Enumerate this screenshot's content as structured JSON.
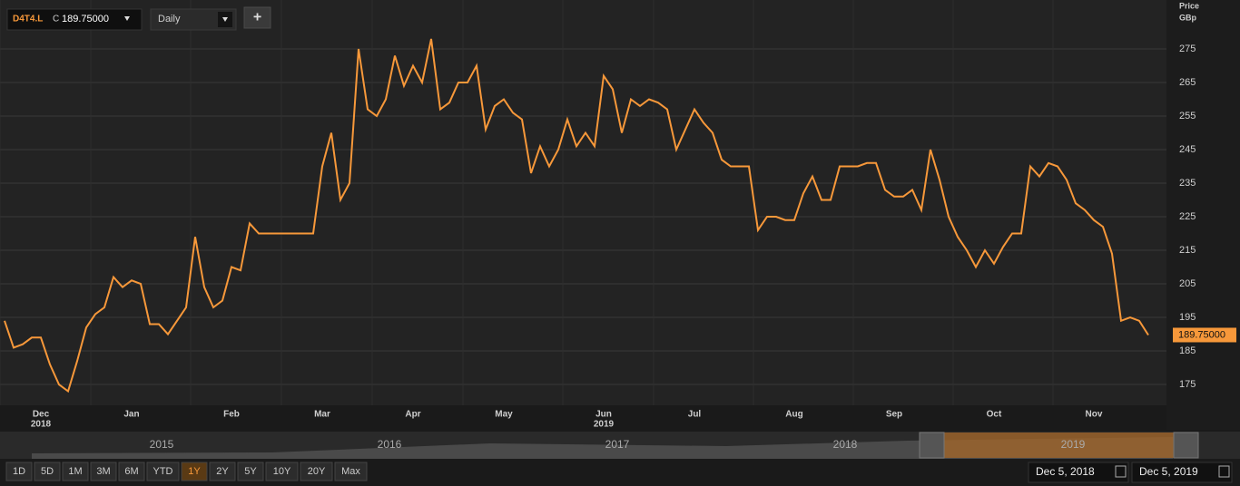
{
  "toolbar": {
    "symbol": "D4T4.L",
    "close_prefix": "C",
    "close": "189.75000",
    "interval": "Daily",
    "add": "+"
  },
  "chart_data": {
    "type": "line",
    "y_axis_title": "Price",
    "y_axis_unit": "GBp",
    "color": "#f7983a",
    "grid": true,
    "categories": [
      null,
      null,
      null,
      null,
      "Dec",
      null,
      null,
      null,
      null,
      null,
      null,
      null,
      null,
      null,
      "Jan",
      null,
      null,
      null,
      null,
      null,
      null,
      null,
      null,
      null,
      null,
      "Feb",
      null,
      null,
      null,
      null,
      null,
      null,
      null,
      null,
      null,
      "Mar",
      null,
      null,
      null,
      null,
      null,
      null,
      null,
      null,
      null,
      "Apr",
      null,
      null,
      null,
      null,
      null,
      null,
      null,
      null,
      null,
      "May",
      null,
      null,
      null,
      null,
      null,
      null,
      null,
      null,
      null,
      null,
      "Jun",
      null,
      null,
      null,
      null,
      null,
      null,
      null,
      null,
      null,
      "Jul",
      null,
      null,
      null,
      null,
      null,
      null,
      null,
      null,
      null,
      null,
      "Aug",
      null,
      null,
      null,
      null,
      null,
      null,
      null,
      null,
      null,
      null,
      "Sep",
      null,
      null,
      null,
      null,
      null,
      null,
      null,
      null,
      null,
      null,
      "Oct",
      null,
      null,
      null,
      null,
      null,
      null,
      null,
      null,
      null,
      null,
      "Nov",
      null,
      null,
      null,
      null,
      null,
      null
    ],
    "years": [
      "2018",
      "2019"
    ],
    "values": [
      194,
      186,
      187,
      189,
      189,
      181,
      175,
      173,
      182,
      192,
      196,
      198,
      207,
      204,
      206,
      205,
      193,
      193,
      190,
      194,
      198,
      219,
      204,
      198,
      200,
      210,
      209,
      223,
      220,
      220,
      220,
      220,
      220,
      220,
      220,
      240,
      250,
      230,
      235,
      275,
      257,
      255,
      260,
      273,
      264,
      270,
      265,
      278,
      257,
      259,
      265,
      265,
      270,
      251,
      258,
      260,
      256,
      254,
      238,
      246,
      240,
      245,
      254,
      246,
      250,
      246,
      267,
      263,
      250,
      260,
      258,
      260,
      259,
      257,
      245,
      251,
      257,
      253,
      250,
      242,
      240,
      240,
      240,
      221,
      225,
      225,
      224,
      224,
      232,
      237,
      230,
      230,
      240,
      240,
      240,
      241,
      241,
      233,
      231,
      231,
      233,
      227,
      245,
      236,
      225,
      219,
      215,
      210,
      215,
      211,
      216,
      220,
      220,
      240,
      237,
      241,
      240,
      236,
      229,
      227,
      224,
      222,
      214,
      194,
      195,
      194,
      189.75
    ],
    "last_label": "189.75000",
    "ylim": [
      168.8,
      289.6
    ],
    "yticks": [
      175,
      185,
      195,
      205,
      215,
      225,
      235,
      245,
      255,
      265,
      275
    ]
  },
  "navigator": {
    "years": [
      "2015",
      "2016",
      "2017",
      "2018",
      "2019"
    ]
  },
  "range_buttons": [
    "1D",
    "5D",
    "1M",
    "3M",
    "6M",
    "YTD",
    "1Y",
    "2Y",
    "5Y",
    "10Y",
    "20Y",
    "Max"
  ],
  "selected_range": "1Y",
  "date_range": {
    "from": "Dec 5, 2018",
    "to": "Dec 5, 2019"
  }
}
